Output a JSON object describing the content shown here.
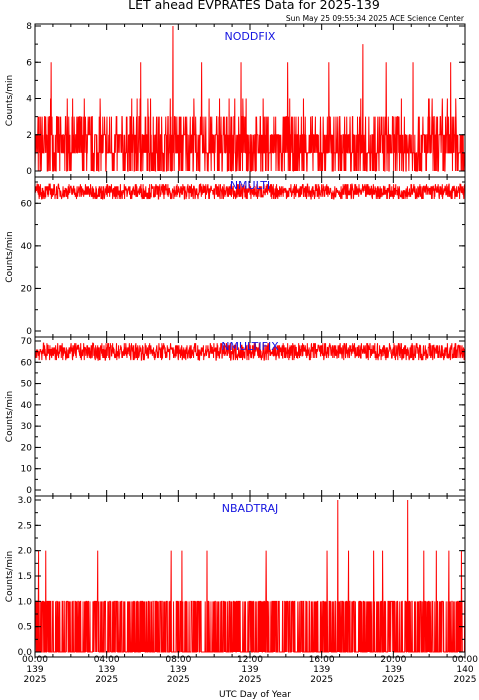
{
  "title": "LET ahead EVPRATES Data for 2025-139",
  "timestamp": "Sun May 25 09:55:34 2025 ACE Science Center",
  "xlabel": "UTC Day of Year",
  "colors": {
    "series": "#ff0000",
    "label": "#1515e0",
    "frame": "#000000"
  },
  "x_ticks": [
    {
      "time": "00:00",
      "doy": "139",
      "year": "2025"
    },
    {
      "time": "04:00",
      "doy": "139",
      "year": "2025"
    },
    {
      "time": "08:00",
      "doy": "139",
      "year": "2025"
    },
    {
      "time": "12:00",
      "doy": "139",
      "year": "2025"
    },
    {
      "time": "16:00",
      "doy": "139",
      "year": "2025"
    },
    {
      "time": "20:00",
      "doy": "139",
      "year": "2025"
    },
    {
      "time": "00:00",
      "doy": "140",
      "year": "2025"
    }
  ],
  "chart_data": [
    {
      "type": "line",
      "series": [
        {
          "name": "NODDFIX"
        }
      ],
      "x_unit": "hours since 2025-139 00:00",
      "xlim": [
        0,
        24
      ],
      "ylabel": "Counts/min",
      "ylim": [
        0,
        8
      ],
      "yticks": [
        0,
        2,
        4,
        6,
        8
      ],
      "typical_values": [
        0,
        1,
        2,
        3
      ],
      "notable_points": [
        {
          "x": 7.7,
          "y": 8
        },
        {
          "x": 18.3,
          "y": 7
        },
        {
          "x": 23.2,
          "y": 6
        },
        {
          "x": 0.9,
          "y": 6
        },
        {
          "x": 5.9,
          "y": 6
        },
        {
          "x": 9.3,
          "y": 6
        },
        {
          "x": 11.5,
          "y": 6
        },
        {
          "x": 14.1,
          "y": 6
        },
        {
          "x": 16.4,
          "y": 6
        },
        {
          "x": 19.6,
          "y": 6
        },
        {
          "x": 21.1,
          "y": 6
        }
      ]
    },
    {
      "type": "line",
      "series": [
        {
          "name": "NMULTI"
        }
      ],
      "x_unit": "hours since 2025-139 00:00",
      "xlim": [
        0,
        24
      ],
      "ylabel": "Counts/min",
      "ylim": [
        0,
        70
      ],
      "yticks": [
        0,
        20,
        40,
        60
      ],
      "typical_range": [
        62,
        69
      ]
    },
    {
      "type": "line",
      "series": [
        {
          "name": "NMULTIFIX"
        }
      ],
      "x_unit": "hours since 2025-139 00:00",
      "xlim": [
        0,
        24
      ],
      "ylabel": "Counts/min",
      "ylim": [
        0,
        70
      ],
      "yticks": [
        0,
        10,
        20,
        30,
        40,
        50,
        60,
        70
      ],
      "typical_range": [
        61,
        69
      ]
    },
    {
      "type": "line",
      "series": [
        {
          "name": "NBADTRAJ"
        }
      ],
      "x_unit": "hours since 2025-139 00:00",
      "xlim": [
        0,
        24
      ],
      "ylabel": "Counts/min",
      "ylim": [
        0,
        3
      ],
      "yticks": [
        0.0,
        0.5,
        1.0,
        1.5,
        2.0,
        2.5,
        3.0
      ],
      "typical_values": [
        0,
        1
      ],
      "notable_points": [
        {
          "x": 16.9,
          "y": 3
        },
        {
          "x": 20.8,
          "y": 3
        },
        {
          "x": 0.2,
          "y": 2
        },
        {
          "x": 0.6,
          "y": 2
        },
        {
          "x": 3.5,
          "y": 2
        },
        {
          "x": 7.6,
          "y": 2
        },
        {
          "x": 8.2,
          "y": 2
        },
        {
          "x": 9.6,
          "y": 2
        },
        {
          "x": 12.9,
          "y": 2
        },
        {
          "x": 16.3,
          "y": 2
        },
        {
          "x": 17.5,
          "y": 2
        },
        {
          "x": 18.9,
          "y": 2
        },
        {
          "x": 19.4,
          "y": 2
        },
        {
          "x": 21.7,
          "y": 2
        },
        {
          "x": 22.4,
          "y": 2
        },
        {
          "x": 23.1,
          "y": 2
        },
        {
          "x": 23.8,
          "y": 2
        }
      ]
    }
  ]
}
